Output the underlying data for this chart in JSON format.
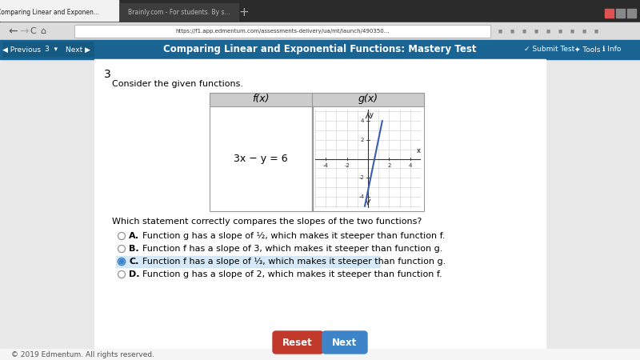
{
  "title_number": "3",
  "intro_text": "Consider the given functions.",
  "table_headers": [
    "f(x)",
    "g(x)"
  ],
  "fx_equation": "3x − y = 6",
  "question": "Which statement correctly compares the slopes of the two functions?",
  "options": [
    {
      "letter": "A.",
      "text": "Function g has a slope of ½, which makes it steeper than function f.",
      "selected": false
    },
    {
      "letter": "B.",
      "text": "Function f has a slope of 3, which makes it steeper than function g.",
      "selected": false
    },
    {
      "letter": "C.",
      "text": "Function f has a slope of ⅓, which makes it steeper than function g.",
      "selected": true
    },
    {
      "letter": "D.",
      "text": "Function g has a slope of 2, which makes it steeper than function f.",
      "selected": false
    }
  ],
  "line_color": "#3a5db0",
  "page_bg": "#e8e8e8",
  "content_bg": "#ffffff",
  "reset_btn_color": "#c0392b",
  "next_btn_color": "#3d85c8",
  "selected_radio_color": "#3d85c8",
  "top_bar_color": "#1a6494",
  "footer_text": "© 2019 Edmentum. All rights reserved.",
  "browser_tab1_text": "Comparing Linear and Exponen...",
  "browser_tab2_text": "Brainly.com - For students. By s...",
  "address_bar_text": "https://f1.app.edmentum.com/assessments-delivery/ua/mt/launch/490350...",
  "app_title": "Comparing Linear and Exponential Functions: Mastery Test"
}
